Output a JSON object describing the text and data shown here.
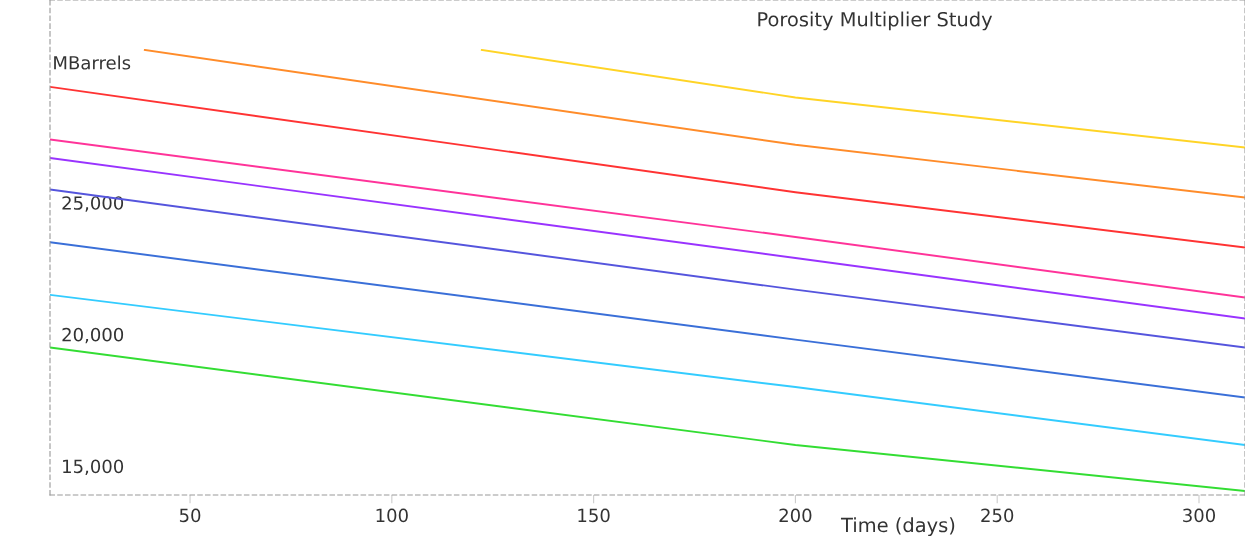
{
  "chart_data": {
    "type": "line",
    "title": "Porosity Multiplier Study",
    "xlabel": "Time (days)",
    "ylabel": "MBarrels",
    "xlim": [
      15.3,
      311.4
    ],
    "ylim": [
      13900,
      32700
    ],
    "xticks": [
      50,
      100,
      150,
      200,
      250,
      300
    ],
    "yticks": [
      {
        "value": 15000,
        "label": "15,000"
      },
      {
        "value": 20000,
        "label": "20,000"
      },
      {
        "value": 25000,
        "label": "25,000"
      }
    ],
    "grid": false,
    "legend": false,
    "marker": "none",
    "line_style": "solid",
    "series": [
      {
        "color": "#ffd426",
        "x": [
          122.3,
          200,
          311.4
        ],
        "values": [
          30800,
          29000,
          27100
        ]
      },
      {
        "color": "#ff8c2a",
        "x": [
          38.8,
          200,
          311.4
        ],
        "values": [
          30800,
          27200,
          25200
        ]
      },
      {
        "color": "#ff3333",
        "x": [
          15.3,
          200,
          311.4
        ],
        "values": [
          29400,
          25400,
          23300
        ]
      },
      {
        "color": "#ff3399",
        "x": [
          15.3,
          200,
          311.4
        ],
        "values": [
          27400,
          23700,
          21400
        ]
      },
      {
        "color": "#9933ff",
        "x": [
          15.3,
          200,
          311.4
        ],
        "values": [
          26700,
          22900,
          20600
        ]
      },
      {
        "color": "#5555dd",
        "x": [
          15.3,
          200,
          311.4
        ],
        "values": [
          25500,
          21700,
          19500
        ]
      },
      {
        "color": "#3a6fd8",
        "x": [
          15.3,
          200,
          311.4
        ],
        "values": [
          23500,
          19800,
          17600
        ]
      },
      {
        "color": "#33ccff",
        "x": [
          15.3,
          200,
          311.4
        ],
        "values": [
          21500,
          18000,
          15800
        ]
      },
      {
        "color": "#33dd33",
        "x": [
          15.3,
          200,
          311.4
        ],
        "values": [
          19500,
          15800,
          14050
        ]
      }
    ]
  }
}
